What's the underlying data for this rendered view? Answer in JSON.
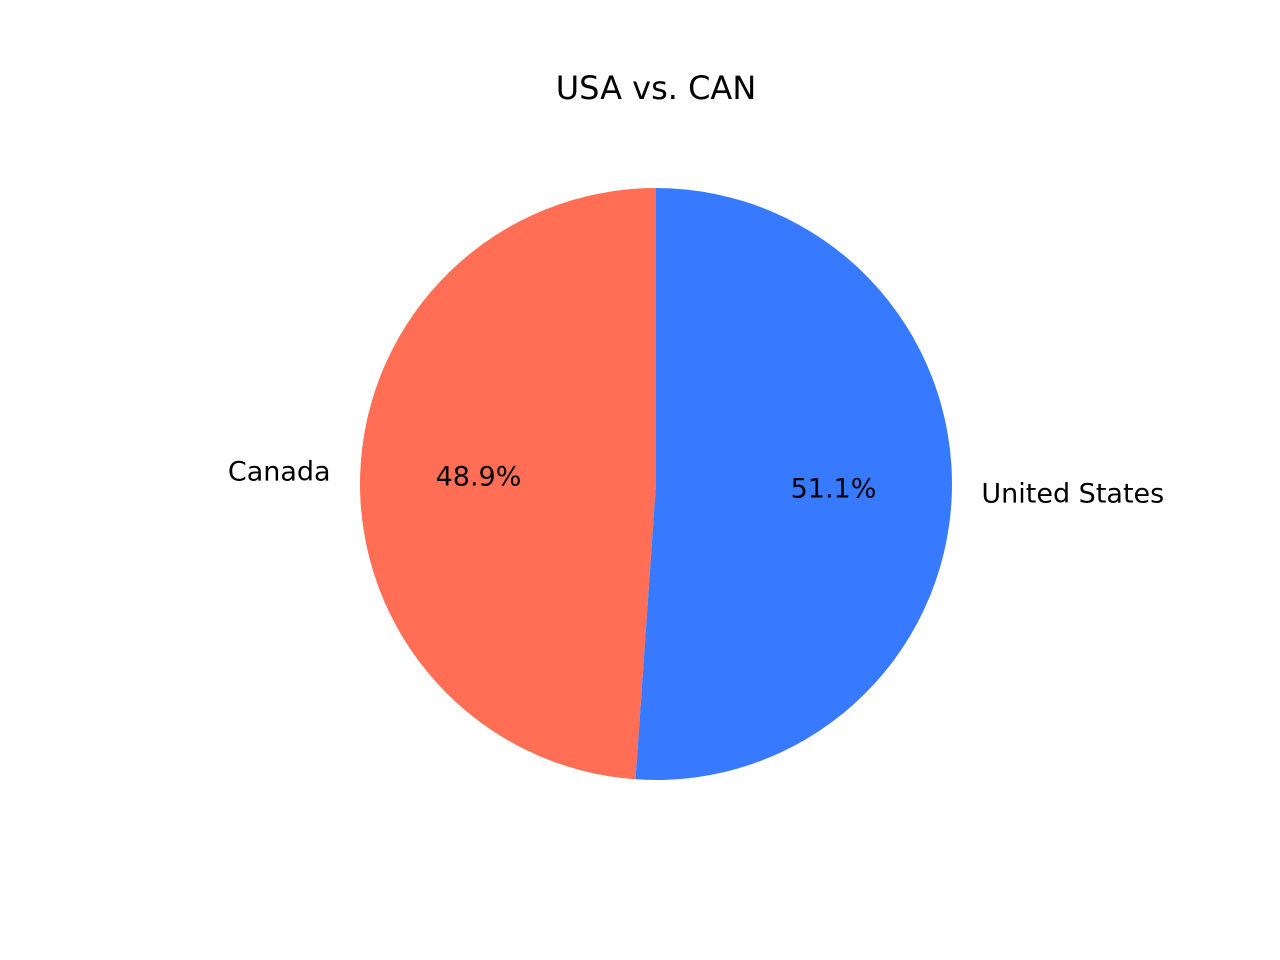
{
  "chart_data": {
    "type": "pie",
    "title": "USA vs. CAN",
    "slices": [
      {
        "label": "Canada",
        "value": 48.9,
        "pct_label": "48.9%",
        "color": "#ff6e55"
      },
      {
        "label": "United States",
        "value": 51.1,
        "pct_label": "51.1%",
        "color": "#377aff"
      }
    ],
    "start_angle_deg": 90,
    "direction": "counterclockwise",
    "legend": "none"
  }
}
